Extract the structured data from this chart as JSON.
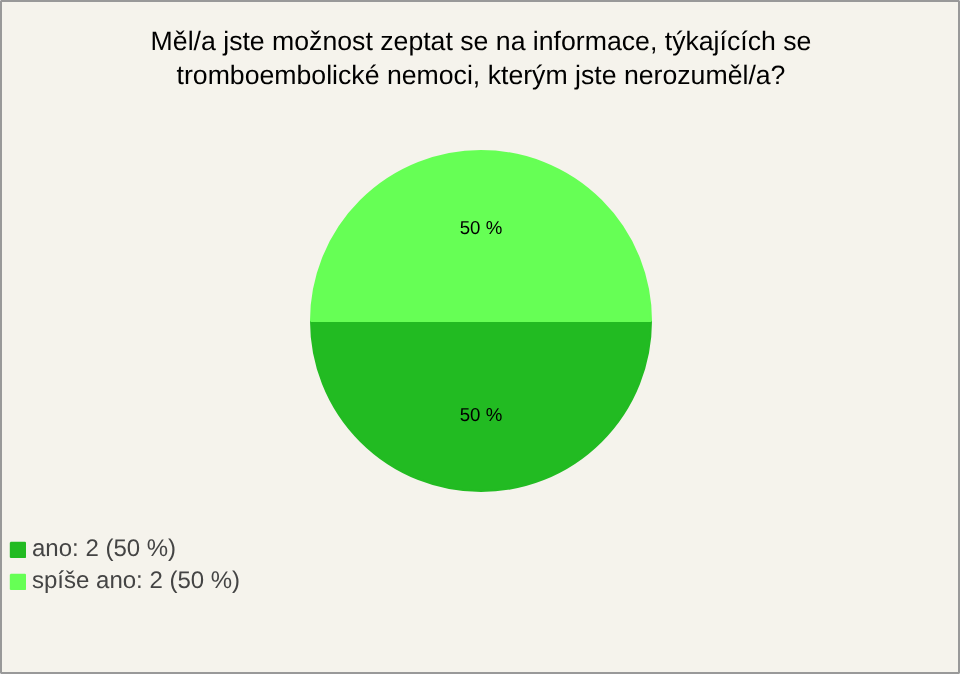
{
  "chart_data": {
    "type": "pie",
    "title": "Měl/a jste možnost zeptat se na informace, týkajících se\ntromboembolické nemoci, kterým jste nerozuměl/a?",
    "categories": [
      "ano: 2 (50 %)",
      "spíše ano: 2 (50 %)"
    ],
    "values": [
      50,
      50
    ],
    "colors": [
      "#22bb22",
      "#66ff55"
    ],
    "value_labels": [
      "50 %",
      "50 %"
    ],
    "legend": "bottom left"
  }
}
